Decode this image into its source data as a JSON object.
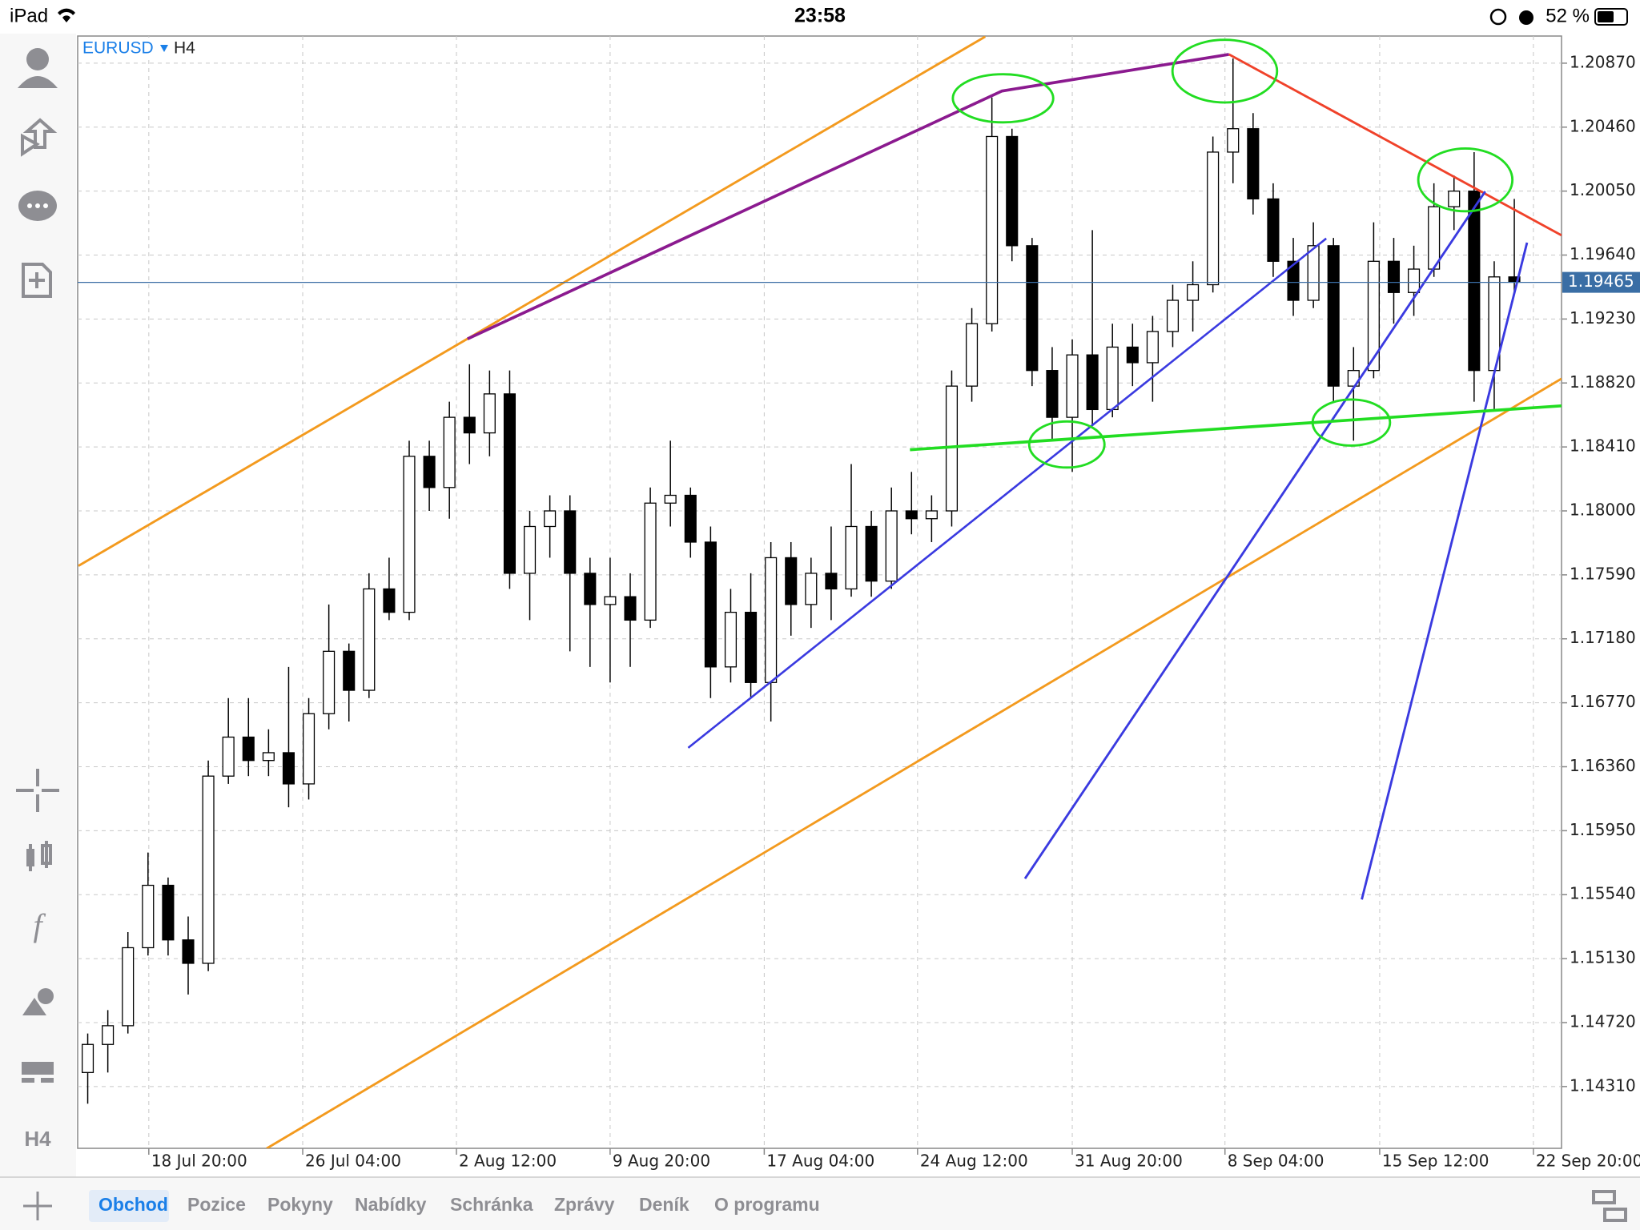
{
  "status_bar": {
    "device": "iPad",
    "time": "23:58",
    "battery": "52 %"
  },
  "sidebar": {
    "timeframe": "H4"
  },
  "tabs": [
    "Obchod",
    "Pozice",
    "Pokyny",
    "Nabídky",
    "Schránka",
    "Zprávy",
    "Deník",
    "O programu"
  ],
  "chart_data": {
    "type": "candlestick",
    "symbol": "EURUSD",
    "timeframe": "H4",
    "open": [
      1.144,
      1.1458,
      1.147,
      1.152,
      1.156,
      1.1525,
      1.151,
      1.163,
      1.1655,
      1.164,
      1.1645,
      1.1625,
      1.167,
      1.171,
      1.1685,
      1.175,
      1.1735,
      1.1835,
      1.1815,
      1.186,
      1.185,
      1.1875,
      1.176,
      1.179,
      1.18,
      1.176,
      1.174,
      1.1745,
      1.173,
      1.1805,
      1.181,
      1.178,
      1.17,
      1.1735,
      1.169,
      1.177,
      1.174,
      1.176,
      1.175,
      1.179,
      1.1755,
      1.18,
      1.1795,
      1.18,
      1.188,
      1.192,
      1.204,
      1.197,
      1.189,
      1.186,
      1.19,
      1.1865,
      1.1905,
      1.1895,
      1.1915,
      1.1935,
      1.1945,
      1.203,
      1.2045,
      1.2,
      1.196,
      1.1935,
      1.197,
      1.188,
      1.189,
      1.196,
      1.194,
      1.1955,
      1.1995,
      1.2005,
      1.189,
      1.195
    ],
    "high": [
      1.1465,
      1.148,
      1.153,
      1.1581,
      1.1565,
      1.154,
      1.164,
      1.168,
      1.168,
      1.166,
      1.17,
      1.168,
      1.174,
      1.1715,
      1.176,
      1.177,
      1.1845,
      1.1845,
      1.187,
      1.1894,
      1.189,
      1.189,
      1.18,
      1.181,
      1.181,
      1.177,
      1.177,
      1.176,
      1.1815,
      1.1845,
      1.1815,
      1.179,
      1.175,
      1.176,
      1.178,
      1.178,
      1.177,
      1.179,
      1.183,
      1.18,
      1.1815,
      1.1825,
      1.181,
      1.189,
      1.193,
      1.2065,
      1.2045,
      1.1975,
      1.1905,
      1.191,
      1.198,
      1.192,
      1.192,
      1.1925,
      1.1945,
      1.196,
      1.204,
      1.209,
      1.2055,
      1.201,
      1.1975,
      1.1985,
      1.1975,
      1.1905,
      1.1985,
      1.1975,
      1.197,
      1.201,
      1.2015,
      1.203,
      1.196,
      1.2
    ],
    "low": [
      1.142,
      1.144,
      1.1465,
      1.1515,
      1.1515,
      1.149,
      1.1505,
      1.1625,
      1.163,
      1.163,
      1.161,
      1.1615,
      1.166,
      1.1665,
      1.168,
      1.173,
      1.173,
      1.18,
      1.1795,
      1.183,
      1.1835,
      1.175,
      1.173,
      1.177,
      1.171,
      1.17,
      1.169,
      1.17,
      1.1725,
      1.179,
      1.177,
      1.168,
      1.169,
      1.168,
      1.1665,
      1.172,
      1.1725,
      1.173,
      1.1745,
      1.1745,
      1.175,
      1.1785,
      1.178,
      1.179,
      1.187,
      1.1915,
      1.196,
      1.188,
      1.1845,
      1.1825,
      1.1855,
      1.186,
      1.188,
      1.187,
      1.1905,
      1.1915,
      1.194,
      1.201,
      1.199,
      1.195,
      1.1925,
      1.193,
      1.187,
      1.1845,
      1.1885,
      1.192,
      1.1925,
      1.195,
      1.198,
      1.187,
      1.1865,
      1.194
    ],
    "close": [
      1.1458,
      1.147,
      1.152,
      1.156,
      1.1525,
      1.151,
      1.163,
      1.1655,
      1.164,
      1.1645,
      1.1625,
      1.167,
      1.171,
      1.1685,
      1.175,
      1.1735,
      1.1835,
      1.1815,
      1.186,
      1.185,
      1.1875,
      1.176,
      1.179,
      1.18,
      1.176,
      1.174,
      1.1745,
      1.173,
      1.1805,
      1.181,
      1.178,
      1.17,
      1.1735,
      1.169,
      1.177,
      1.174,
      1.176,
      1.175,
      1.179,
      1.1755,
      1.18,
      1.1795,
      1.18,
      1.188,
      1.192,
      1.204,
      1.197,
      1.189,
      1.186,
      1.19,
      1.1865,
      1.1905,
      1.1895,
      1.1915,
      1.1935,
      1.1945,
      1.203,
      1.2045,
      1.2,
      1.196,
      1.1935,
      1.197,
      1.188,
      1.189,
      1.196,
      1.194,
      1.1955,
      1.1995,
      1.2005,
      1.189,
      1.195,
      1.1947
    ],
    "current_price": 1.19465,
    "xlim": [
      -0.5,
      73.35
    ],
    "xticks": [
      {
        "value": 3.04,
        "label": "18 Jul 20:00"
      },
      {
        "value": 10.7,
        "label": "26 Jul 04:00"
      },
      {
        "value": 18.35,
        "label": "2 Aug 12:00"
      },
      {
        "value": 26.0,
        "label": "9 Aug 20:00"
      },
      {
        "value": 33.67,
        "label": "17 Aug 04:00"
      },
      {
        "value": 41.3,
        "label": "24 Aug 12:00"
      },
      {
        "value": 49.0,
        "label": "31 Aug 20:00"
      },
      {
        "value": 56.6,
        "label": "8 Sep 04:00"
      },
      {
        "value": 64.3,
        "label": "15 Sep 12:00"
      },
      {
        "value": 71.95,
        "label": "22 Sep 20:00"
      }
    ],
    "ylim": [
      1.13914,
      1.21044
    ],
    "yticks": [
      {
        "value": 1.2087,
        "label": "1.20870"
      },
      {
        "value": 1.2046,
        "label": "1.20460"
      },
      {
        "value": 1.2005,
        "label": "1.20050"
      },
      {
        "value": 1.1964,
        "label": "1.19640"
      },
      {
        "value": 1.1923,
        "label": "1.19230"
      },
      {
        "value": 1.1882,
        "label": "1.18820"
      },
      {
        "value": 1.1841,
        "label": "1.18410"
      },
      {
        "value": 1.18,
        "label": "1.18000"
      },
      {
        "value": 1.1759,
        "label": "1.17590"
      },
      {
        "value": 1.1718,
        "label": "1.17180"
      },
      {
        "value": 1.1677,
        "label": "1.16770"
      },
      {
        "value": 1.1636,
        "label": "1.16360"
      },
      {
        "value": 1.1595,
        "label": "1.15950"
      },
      {
        "value": 1.1554,
        "label": "1.15540"
      },
      {
        "value": 1.1513,
        "label": "1.15130"
      },
      {
        "value": 1.1472,
        "label": "1.14720"
      },
      {
        "value": 1.1431,
        "label": "1.14310"
      }
    ],
    "grid": true,
    "up_color": "#ffffff",
    "down_color": "#000000",
    "price_line_color": "#3a6ea5"
  }
}
